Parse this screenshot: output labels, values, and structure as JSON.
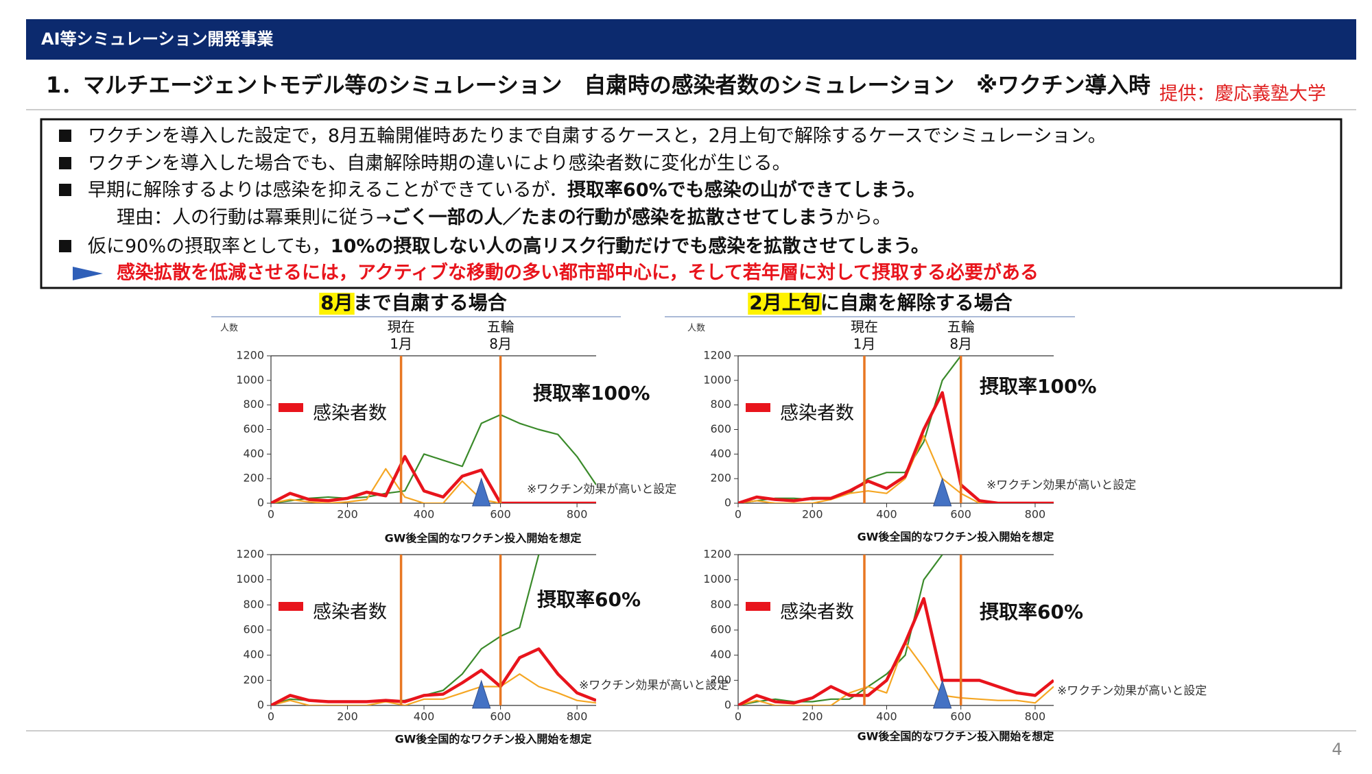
{
  "header": {
    "bar_title": "AI等シミュレーション開発事業",
    "title": "1．マルチエージェントモデル等のシミュレーション　自粛時の感染者数のシミュレーション　※ワクチン導入時",
    "credit": "提供：慶応義塾大学",
    "page_number": "4"
  },
  "bullets": [
    {
      "segments": [
        {
          "text": "ワクチンを導入した設定で，8月五輪開催時あたりまで自粛するケースと，2月上旬で解除するケースでシミュレーション。",
          "bold": false
        }
      ]
    },
    {
      "segments": [
        {
          "text": "ワクチンを導入した場合でも、自粛解除時期の違いにより感染者数に変化が生じる。",
          "bold": false
        }
      ]
    },
    {
      "segments": [
        {
          "text": "早期に解除するよりは感染を抑えることができているが．",
          "bold": false
        },
        {
          "text": "摂取率60%でも感染の山ができてしまう。",
          "bold": true
        }
      ]
    },
    {
      "segments": [
        {
          "text": "仮に90%の摂取率としても，",
          "bold": false
        },
        {
          "text": "10%の摂取しない人の高リスク行動だけでも感染を拡散させてしまう。",
          "bold": true
        }
      ]
    }
  ],
  "reason": {
    "segments": [
      {
        "text": "理由：人の行動は冪乗則に従う→",
        "bold": false
      },
      {
        "text": "ごく一部の人／たまの行動が感染を拡散させてしまう",
        "bold": true
      },
      {
        "text": "から。",
        "bold": false
      }
    ]
  },
  "conclusion": "感染拡散を低減させるには，アクティブな移動の多い都市部中心に，そして若年層に対して摂取する必要がある",
  "panels": [
    {
      "title_highlight": "8月",
      "title_rest": "まで自粛する場合",
      "y_unit": "人数",
      "vline_labels": [
        [
          "現在",
          "1月"
        ],
        [
          "五輪",
          "8月"
        ]
      ],
      "charts": [
        {
          "type": "line",
          "x": [
            0,
            50,
            100,
            150,
            200,
            250,
            300,
            350,
            400,
            450,
            500,
            550,
            600,
            650,
            700,
            750,
            800,
            850
          ],
          "series": [
            {
              "color": "#3a8a2a",
              "values": [
                0,
                20,
                40,
                50,
                40,
                50,
                80,
                100,
                400,
                350,
                300,
                650,
                720,
                650,
                600,
                560,
                380,
                150
              ]
            },
            {
              "color": "#f5a623",
              "values": [
                0,
                30,
                10,
                0,
                10,
                30,
                280,
                50,
                0,
                0,
                180,
                30,
                0,
                0,
                0,
                0,
                0,
                0
              ]
            },
            {
              "name": "感染者数",
              "color": "#e8141c",
              "values": [
                0,
                80,
                30,
                20,
                40,
                90,
                60,
                380,
                100,
                50,
                220,
                270,
                0,
                0,
                0,
                0,
                0,
                0
              ]
            }
          ],
          "xlim": [
            0,
            850
          ],
          "xticks": [
            0,
            200,
            400,
            600,
            800
          ],
          "ylim": [
            0,
            1200
          ],
          "yticks": [
            0,
            200,
            400,
            600,
            800,
            1000,
            1200
          ],
          "vlines": [
            340,
            600
          ],
          "marker_x": 550,
          "rate_label": "摂取率100%",
          "note": "※ワクチン効果が高いと設定",
          "caption": "GW後全国的なワクチン投入開始を想定"
        },
        {
          "type": "line",
          "x": [
            0,
            50,
            100,
            150,
            200,
            250,
            300,
            350,
            400,
            450,
            500,
            550,
            600,
            650,
            700,
            750,
            800,
            850
          ],
          "series": [
            {
              "color": "#3a8a2a",
              "values": [
                0,
                50,
                40,
                30,
                30,
                30,
                30,
                40,
                80,
                120,
                250,
                450,
                550,
                620,
                1200,
                null,
                null,
                null
              ]
            },
            {
              "color": "#f5a623",
              "values": [
                0,
                40,
                0,
                0,
                0,
                0,
                30,
                0,
                50,
                50,
                100,
                150,
                150,
                250,
                150,
                100,
                40,
                20
              ]
            },
            {
              "name": "感染者数",
              "color": "#e8141c",
              "values": [
                0,
                80,
                40,
                30,
                30,
                30,
                40,
                30,
                80,
                90,
                180,
                280,
                150,
                380,
                450,
                250,
                100,
                40
              ]
            }
          ],
          "xlim": [
            0,
            850
          ],
          "xticks": [
            0,
            200,
            400,
            600,
            800
          ],
          "ylim": [
            0,
            1200
          ],
          "yticks": [
            0,
            200,
            400,
            600,
            800,
            1000,
            1200
          ],
          "vlines": [
            340,
            600
          ],
          "marker_x": 550,
          "rate_label": "摂取率60%",
          "note": "※ワクチン効果が高いと設定",
          "caption": "GW後全国的なワクチン投入開始を想定"
        }
      ]
    },
    {
      "title_highlight": "2月上旬",
      "title_rest": "に自粛を解除する場合",
      "y_unit": "人数",
      "vline_labels": [
        [
          "現在",
          "1月"
        ],
        [
          "五輪",
          "8月"
        ]
      ],
      "charts": [
        {
          "type": "line",
          "x": [
            0,
            50,
            100,
            150,
            200,
            250,
            300,
            350,
            400,
            450,
            500,
            550,
            600,
            650,
            700,
            750,
            800,
            850
          ],
          "series": [
            {
              "color": "#3a8a2a",
              "values": [
                0,
                20,
                40,
                40,
                30,
                40,
                80,
                200,
                250,
                250,
                500,
                1000,
                1200,
                null,
                null,
                null,
                null,
                null
              ]
            },
            {
              "color": "#f5a623",
              "values": [
                0,
                20,
                0,
                0,
                0,
                30,
                80,
                100,
                80,
                200,
                550,
                200,
                80,
                0,
                0,
                0,
                0,
                0
              ]
            },
            {
              "name": "感染者数",
              "color": "#e8141c",
              "values": [
                0,
                50,
                30,
                20,
                40,
                40,
                100,
                180,
                120,
                220,
                600,
                900,
                150,
                20,
                0,
                0,
                0,
                0
              ]
            }
          ],
          "xlim": [
            0,
            850
          ],
          "xticks": [
            0,
            200,
            400,
            600,
            800
          ],
          "ylim": [
            0,
            1200
          ],
          "yticks": [
            0,
            200,
            400,
            600,
            800,
            1000,
            1200
          ],
          "vlines": [
            340,
            600
          ],
          "marker_x": 550,
          "rate_label": "摂取率100%",
          "note": "※ワクチン効果が高いと設定",
          "caption": "GW後全国的なワクチン投入開始を想定"
        },
        {
          "type": "line",
          "x": [
            0,
            50,
            100,
            150,
            200,
            250,
            300,
            350,
            400,
            450,
            500,
            550,
            600,
            650,
            700,
            750,
            800,
            850
          ],
          "series": [
            {
              "color": "#3a8a2a",
              "values": [
                0,
                30,
                50,
                30,
                30,
                50,
                50,
                150,
                250,
                400,
                1000,
                1200,
                null,
                null,
                null,
                null,
                null,
                null
              ]
            },
            {
              "color": "#f5a623",
              "values": [
                0,
                40,
                0,
                0,
                0,
                0,
                100,
                150,
                100,
                500,
                300,
                80,
                60,
                50,
                40,
                40,
                20,
                150
              ]
            },
            {
              "name": "感染者数",
              "color": "#e8141c",
              "values": [
                0,
                80,
                30,
                20,
                60,
                150,
                80,
                80,
                200,
                500,
                850,
                200,
                200,
                200,
                150,
                100,
                80,
                200
              ]
            }
          ],
          "xlim": [
            0,
            850
          ],
          "xticks": [
            0,
            200,
            400,
            600,
            800
          ],
          "ylim": [
            0,
            1200
          ],
          "yticks": [
            0,
            200,
            400,
            600,
            800,
            1000,
            1200
          ],
          "vlines": [
            340,
            600
          ],
          "marker_x": 550,
          "rate_label": "摂取率60%",
          "note": "※ワクチン効果が高いと設定",
          "caption": "GW後全国的なワクチン投入開始を想定"
        }
      ]
    }
  ]
}
